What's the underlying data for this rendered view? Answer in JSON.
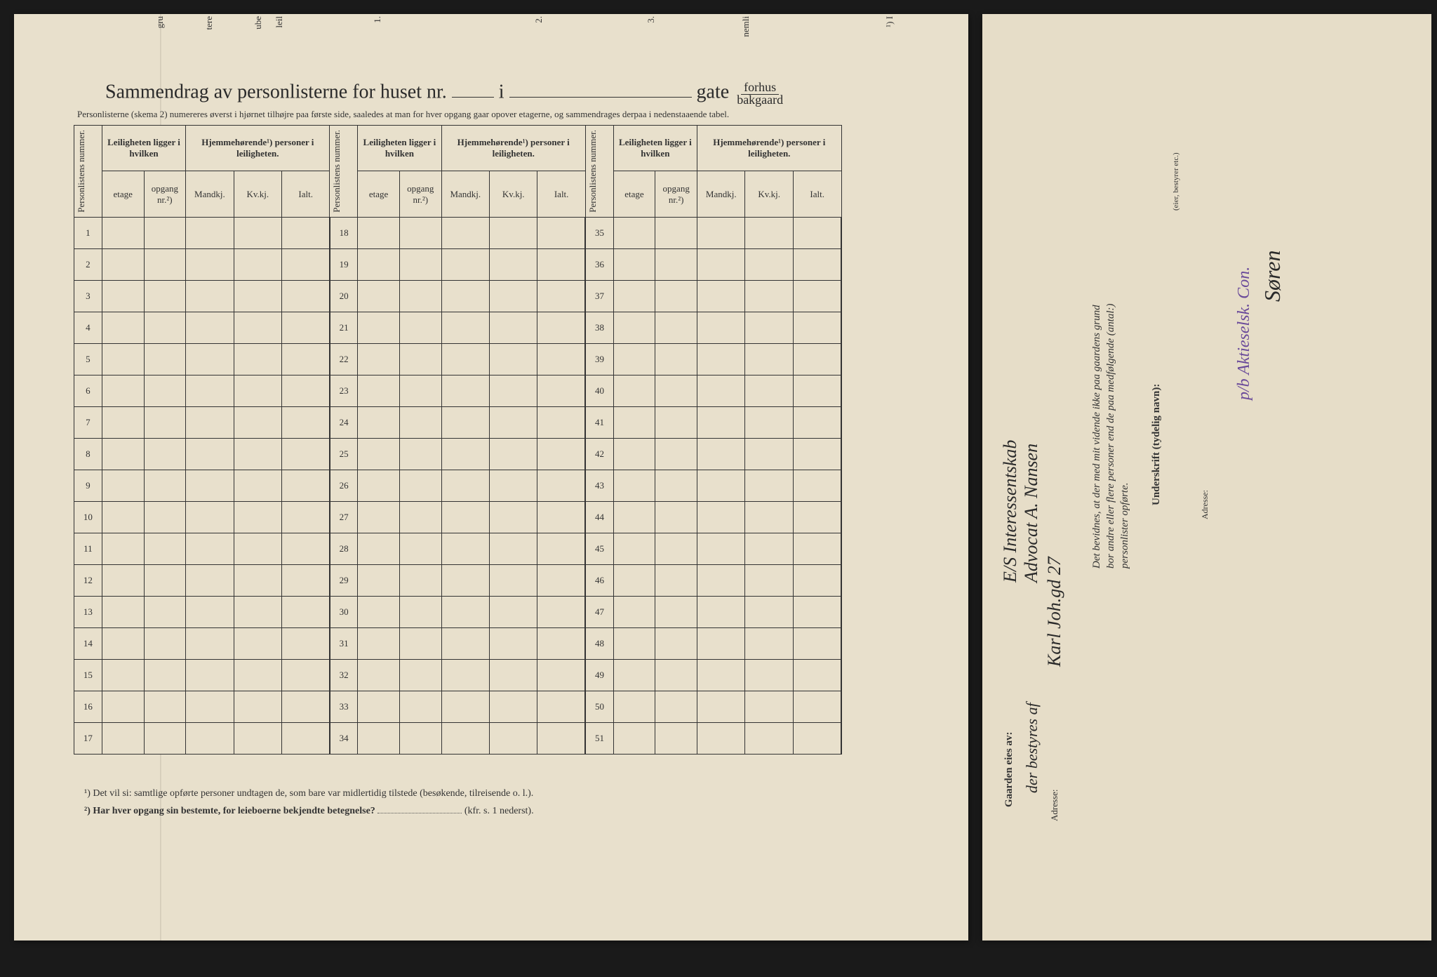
{
  "title": {
    "prefix": "Sammendrag av personlisterne for huset nr.",
    "mid": "i",
    "suffix": "gate",
    "fraction_top": "forhus",
    "fraction_bottom": "bakgaard"
  },
  "subtitle": "Personlisterne (skema 2) numereres øverst i hjørnet tilhøjre paa første side, saaledes at man for hver opgang gaar opover etagerne, og sammendrages derpaa i nedenstaaende tabel.",
  "headers": {
    "personlistens": "Personlistens nummer.",
    "leiligheten": "Leiligheten ligger i hvilken",
    "hjemme": "Hjemmehørende¹) personer i leiligheten.",
    "etage": "etage",
    "opgang": "opgang nr.²)",
    "mandkj": "Mandkj.",
    "kvkj": "Kv.kj.",
    "ialt": "Ialt."
  },
  "rows": {
    "block1": [
      1,
      2,
      3,
      4,
      5,
      6,
      7,
      8,
      9,
      10,
      11,
      12,
      13,
      14,
      15,
      16,
      17
    ],
    "block2": [
      18,
      19,
      20,
      21,
      22,
      23,
      24,
      25,
      26,
      27,
      28,
      29,
      30,
      31,
      32,
      33,
      34
    ],
    "block3": [
      35,
      36,
      37,
      38,
      39,
      40,
      41,
      42,
      43,
      44,
      45,
      46,
      47,
      48,
      49,
      50,
      51
    ]
  },
  "footnotes": {
    "f1": "¹) Det vil si: samtlige opførte personer undtagen de, som bare var midlertidig tilstede (besøkende, tilreisende o. l.).",
    "f2": "²) Har hver opgang sin bestemte, for leieboerne bekjendte betegnelse?",
    "f2_suffix": "(kfr. s. 1 nederst)."
  },
  "right": {
    "gaarden": "Gaarden eies av:",
    "owner1": "E/S Interessentskab",
    "owner2": "der bestyres af",
    "owner3": "Advocat A. Nansen",
    "adresse_label": "Adresse:",
    "adresse": "Karl Joh.gd 27",
    "bevidnes1": "Det bevidnes, at der med mit vidende ikke paa gaardens grund",
    "bevidnes2": "bor andre eller flere personer end de paa medfølgende (antal:)",
    "bevidnes3": "personlister opførte.",
    "underskrift": "Underskrift (tydelig navn):",
    "eier": "(eier, bestyrer etc.)",
    "adresse2": "Adresse:",
    "sign1": "p/b Aktieselsk. Con.",
    "sign2": "Søren"
  },
  "top_fragments": [
    "gru",
    "tere",
    "ube",
    "leil",
    "1.",
    "2.",
    "3.",
    "nemli",
    "¹) I"
  ],
  "colors": {
    "paper": "#e8e0cc",
    "ink": "#333333",
    "purple": "#6a4a9a"
  }
}
